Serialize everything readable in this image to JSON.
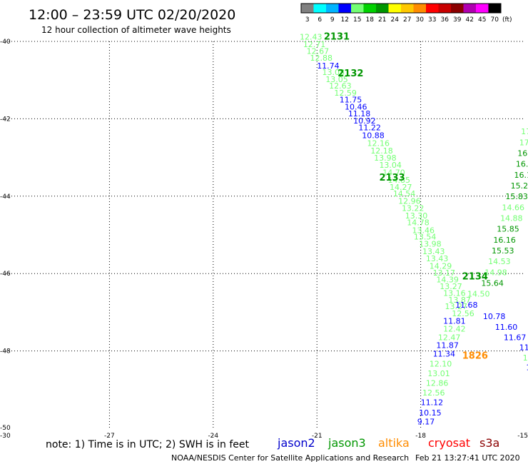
{
  "header": {
    "title": "12:00 – 23:59 UTC 02/20/2020",
    "subtitle": "12 hour collection of altimeter wave heights"
  },
  "color_scale": {
    "labels": [
      "3",
      "6",
      "9",
      "12",
      "15",
      "18",
      "21",
      "24",
      "27",
      "30",
      "33",
      "36",
      "39",
      "42",
      "45",
      "70",
      "(ft)"
    ],
    "colors": [
      "#808080",
      "#00ffff",
      "#00b4ff",
      "#0000ff",
      "#73ff73",
      "#00d200",
      "#009600",
      "#ffff00",
      "#ffc800",
      "#ff8c00",
      "#ff0000",
      "#c80000",
      "#8b0000",
      "#b000b0",
      "#ff00ff",
      "#000000"
    ]
  },
  "footer": {
    "note": "note:  1) Time is in UTC;  2) SWH is in feet",
    "satellites": [
      {
        "name": "jason2",
        "color": "#0000cc"
      },
      {
        "name": "jason3",
        "color": "#009600"
      },
      {
        "name": "altika",
        "color": "#ff8c00"
      },
      {
        "name": "cryosat",
        "color": "#ff0000"
      },
      {
        "name": "s3a",
        "color": "#8b0000"
      }
    ],
    "credit": "NOAA/NESDIS Center for Satellite Applications and Research",
    "timestamp": "Feb 21 13:27:41 UTC 2020"
  },
  "chart_data": {
    "type": "scatter",
    "title": "12:00 – 23:59 UTC 02/20/2020",
    "subtitle": "12 hour collection of altimeter wave heights",
    "xlabel": "",
    "ylabel": "",
    "xlim": [
      -30,
      -15
    ],
    "ylim": [
      -50,
      -40
    ],
    "x_ticks": [
      -30,
      -27,
      -24,
      -21,
      -18,
      -15
    ],
    "y_ticks": [
      -40,
      -42,
      -44,
      -46,
      -48,
      -50
    ],
    "grid": true,
    "pass_labels": [
      {
        "text": "2131",
        "x": -20.8,
        "y": -39.95,
        "color": "#009600"
      },
      {
        "text": "2132",
        "x": -20.4,
        "y": -40.9,
        "color": "#009600"
      },
      {
        "text": "2133",
        "x": -19.2,
        "y": -43.6,
        "color": "#009600"
      },
      {
        "text": "2134",
        "x": -16.8,
        "y": -46.15,
        "color": "#009600"
      },
      {
        "text": "1826",
        "x": -16.8,
        "y": -48.2,
        "color": "#ff8c00"
      }
    ],
    "series": [
      {
        "name": "Pass 2131/2133 track",
        "points": [
          {
            "x": -21.5,
            "y": -39.95,
            "v": "12.43",
            "c": "#73ff73"
          },
          {
            "x": -21.4,
            "y": -40.15,
            "v": "12.71",
            "c": "#73ff73"
          },
          {
            "x": -21.3,
            "y": -40.32,
            "v": "12.67",
            "c": "#73ff73"
          },
          {
            "x": -21.2,
            "y": -40.5,
            "v": "12.88",
            "c": "#73ff73"
          },
          {
            "x": -21.0,
            "y": -40.7,
            "v": "11.74",
            "c": "#0000ff"
          },
          {
            "x": -20.85,
            "y": -40.87,
            "v": "13.08",
            "c": "#73ff73"
          },
          {
            "x": -20.75,
            "y": -41.05,
            "v": "13.05",
            "c": "#73ff73"
          },
          {
            "x": -20.65,
            "y": -41.22,
            "v": "12.63",
            "c": "#73ff73"
          },
          {
            "x": -20.5,
            "y": -41.4,
            "v": "12.59",
            "c": "#73ff73"
          },
          {
            "x": -20.35,
            "y": -41.58,
            "v": "11.75",
            "c": "#0000ff"
          },
          {
            "x": -20.2,
            "y": -41.76,
            "v": "10.46",
            "c": "#0000ff"
          },
          {
            "x": -20.1,
            "y": -41.94,
            "v": "11.18",
            "c": "#0000ff"
          },
          {
            "x": -19.95,
            "y": -42.12,
            "v": "10.92",
            "c": "#0000ff"
          },
          {
            "x": -19.8,
            "y": -42.3,
            "v": "11.22",
            "c": "#0000ff"
          },
          {
            "x": -19.7,
            "y": -42.5,
            "v": "10.88",
            "c": "#0000ff"
          },
          {
            "x": -19.55,
            "y": -42.7,
            "v": "12.16",
            "c": "#73ff73"
          },
          {
            "x": -19.45,
            "y": -42.9,
            "v": "12.18",
            "c": "#73ff73"
          },
          {
            "x": -19.35,
            "y": -43.08,
            "v": "13.98",
            "c": "#73ff73"
          },
          {
            "x": -19.2,
            "y": -43.27,
            "v": "13.04",
            "c": "#73ff73"
          },
          {
            "x": -19.1,
            "y": -43.46,
            "v": "14.70",
            "c": "#73ff73"
          },
          {
            "x": -18.95,
            "y": -43.65,
            "v": "14.85",
            "c": "#73ff73"
          },
          {
            "x": -18.9,
            "y": -43.84,
            "v": "14.27",
            "c": "#73ff73"
          },
          {
            "x": -18.8,
            "y": -44.0,
            "v": "14.54",
            "c": "#73ff73"
          },
          {
            "x": -18.65,
            "y": -44.2,
            "v": "12.96",
            "c": "#73ff73"
          },
          {
            "x": -18.55,
            "y": -44.38,
            "v": "13.22",
            "c": "#73ff73"
          },
          {
            "x": -18.45,
            "y": -44.58,
            "v": "13.30",
            "c": "#73ff73"
          },
          {
            "x": -18.4,
            "y": -44.75,
            "v": "14.78",
            "c": "#73ff73"
          },
          {
            "x": -18.25,
            "y": -44.95,
            "v": "13.46",
            "c": "#73ff73"
          },
          {
            "x": -18.2,
            "y": -45.12,
            "v": "13.54",
            "c": "#73ff73"
          },
          {
            "x": -18.05,
            "y": -45.3,
            "v": "13.98",
            "c": "#73ff73"
          },
          {
            "x": -17.95,
            "y": -45.5,
            "v": "13.43",
            "c": "#73ff73"
          },
          {
            "x": -17.85,
            "y": -45.68,
            "v": "13.43",
            "c": "#73ff73"
          },
          {
            "x": -17.75,
            "y": -45.88,
            "v": "14.29",
            "c": "#73ff73"
          },
          {
            "x": -17.65,
            "y": -46.05,
            "v": "13.17",
            "c": "#73ff73"
          },
          {
            "x": -17.55,
            "y": -46.23,
            "v": "14.39",
            "c": "#73ff73"
          },
          {
            "x": -17.45,
            "y": -46.4,
            "v": "13.27",
            "c": "#73ff73"
          },
          {
            "x": -17.35,
            "y": -46.58,
            "v": "13.16",
            "c": "#73ff73"
          },
          {
            "x": -17.2,
            "y": -46.75,
            "v": "13.87",
            "c": "#73ff73"
          },
          {
            "x": -17.3,
            "y": -46.92,
            "v": "13.27",
            "c": "#73ff73"
          },
          {
            "x": -17.1,
            "y": -47.1,
            "v": "12.56",
            "c": "#73ff73"
          },
          {
            "x": -17.35,
            "y": -47.3,
            "v": "11.81",
            "c": "#0000ff"
          },
          {
            "x": -17.35,
            "y": -47.5,
            "v": "12.42",
            "c": "#73ff73"
          },
          {
            "x": -17.5,
            "y": -47.72,
            "v": "12.47",
            "c": "#73ff73"
          },
          {
            "x": -17.55,
            "y": -47.92,
            "v": "11.87",
            "c": "#0000ff"
          },
          {
            "x": -17.65,
            "y": -48.15,
            "v": "11.34",
            "c": "#0000ff"
          },
          {
            "x": -17.75,
            "y": -48.4,
            "v": "12.10",
            "c": "#73ff73"
          },
          {
            "x": -17.8,
            "y": -48.65,
            "v": "13.01",
            "c": "#73ff73"
          },
          {
            "x": -17.85,
            "y": -48.9,
            "v": "12.86",
            "c": "#73ff73"
          },
          {
            "x": -17.95,
            "y": -49.15,
            "v": "12.56",
            "c": "#73ff73"
          },
          {
            "x": -18.0,
            "y": -49.4,
            "v": "11.12",
            "c": "#0000ff"
          },
          {
            "x": -18.05,
            "y": -49.67,
            "v": "10.15",
            "c": "#0000ff"
          },
          {
            "x": -18.1,
            "y": -49.9,
            "v": "9.17",
            "c": "#0000ff"
          }
        ]
      },
      {
        "name": "Pass 2134 track",
        "points": [
          {
            "x": -15.1,
            "y": -42.4,
            "v": "17",
            "c": "#73ff73"
          },
          {
            "x": -15.15,
            "y": -42.68,
            "v": "17",
            "c": "#73ff73"
          },
          {
            "x": -15.2,
            "y": -42.96,
            "v": "16.",
            "c": "#009600"
          },
          {
            "x": -15.25,
            "y": -43.24,
            "v": "16.2",
            "c": "#009600"
          },
          {
            "x": -15.3,
            "y": -43.52,
            "v": "16.1",
            "c": "#009600"
          },
          {
            "x": -15.4,
            "y": -43.8,
            "v": "15.22",
            "c": "#009600"
          },
          {
            "x": -15.55,
            "y": -44.08,
            "v": "15.83",
            "c": "#009600"
          },
          {
            "x": -15.65,
            "y": -44.36,
            "v": "14.66",
            "c": "#73ff73"
          },
          {
            "x": -15.7,
            "y": -44.64,
            "v": "14.88",
            "c": "#73ff73"
          },
          {
            "x": -15.8,
            "y": -44.92,
            "v": "15.85",
            "c": "#009600"
          },
          {
            "x": -15.9,
            "y": -45.2,
            "v": "16.16",
            "c": "#009600"
          },
          {
            "x": -15.95,
            "y": -45.48,
            "v": "15.53",
            "c": "#009600"
          },
          {
            "x": -16.05,
            "y": -45.76,
            "v": "14.53",
            "c": "#73ff73"
          },
          {
            "x": -16.15,
            "y": -46.04,
            "v": "14.98",
            "c": "#73ff73"
          },
          {
            "x": -16.25,
            "y": -46.32,
            "v": "15.64",
            "c": "#009600"
          },
          {
            "x": -16.65,
            "y": -46.6,
            "v": "14.50",
            "c": "#73ff73"
          },
          {
            "x": -17.0,
            "y": -46.88,
            "v": "11.68",
            "c": "#0000ff"
          },
          {
            "x": -16.2,
            "y": -47.18,
            "v": "10.78",
            "c": "#0000ff"
          },
          {
            "x": -15.85,
            "y": -47.45,
            "v": "11.60",
            "c": "#0000ff"
          },
          {
            "x": -15.6,
            "y": -47.72,
            "v": "11.67",
            "c": "#0000ff"
          },
          {
            "x": -15.15,
            "y": -47.98,
            "v": "11.88",
            "c": "#0000ff"
          },
          {
            "x": -15.05,
            "y": -48.25,
            "v": "12.8",
            "c": "#73ff73"
          },
          {
            "x": -14.95,
            "y": -48.5,
            "v": "11.",
            "c": "#0000ff"
          }
        ]
      }
    ]
  }
}
